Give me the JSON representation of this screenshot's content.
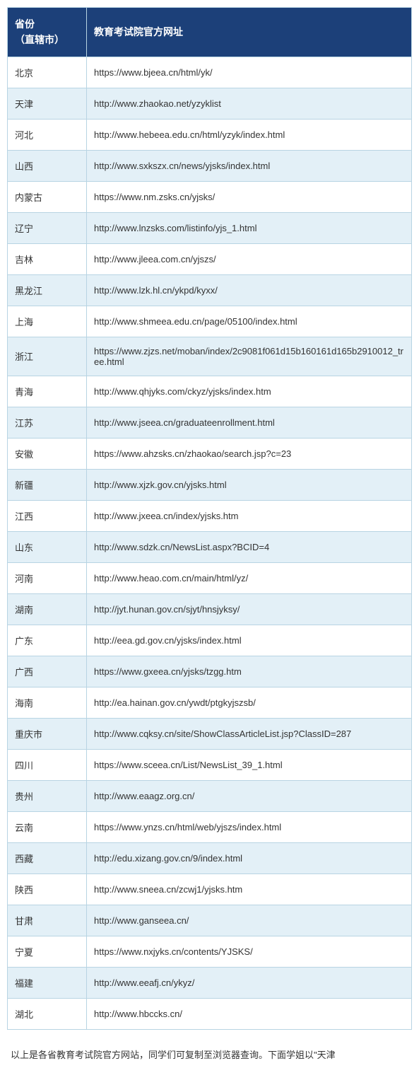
{
  "table": {
    "header": {
      "province": "省份\n（直辖市）",
      "url": "教育考试院官方网址"
    },
    "rows": [
      {
        "province": "北京",
        "url": "https://www.bjeea.cn/html/yk/"
      },
      {
        "province": "天津",
        "url": "http://www.zhaokao.net/yzyklist"
      },
      {
        "province": "河北",
        "url": "http://www.hebeea.edu.cn/html/yzyk/index.html"
      },
      {
        "province": "山西",
        "url": "http://www.sxkszx.cn/news/yjsks/index.html"
      },
      {
        "province": "内蒙古",
        "url": "https://www.nm.zsks.cn/yjsks/"
      },
      {
        "province": "辽宁",
        "url": "http://www.lnzsks.com/listinfo/yjs_1.html"
      },
      {
        "province": "吉林",
        "url": "http://www.jleea.com.cn/yjszs/"
      },
      {
        "province": "黑龙江",
        "url": "http://www.lzk.hl.cn/ykpd/kyxx/"
      },
      {
        "province": "上海",
        "url": "http://www.shmeea.edu.cn/page/05100/index.html"
      },
      {
        "province": "浙江",
        "url": "https://www.zjzs.net/moban/index/2c9081f061d15b160161d165b2910012_tree.html"
      },
      {
        "province": "青海",
        "url": "http://www.qhjyks.com/ckyz/yjsks/index.htm"
      },
      {
        "province": "江苏",
        "url": "http://www.jseea.cn/graduateenrollment.html"
      },
      {
        "province": "安徽",
        "url": "https://www.ahzsks.cn/zhaokao/search.jsp?c=23"
      },
      {
        "province": "新疆",
        "url": "http://www.xjzk.gov.cn/yjsks.html"
      },
      {
        "province": "江西",
        "url": "http://www.jxeea.cn/index/yjsks.htm"
      },
      {
        "province": "山东",
        "url": "http://www.sdzk.cn/NewsList.aspx?BCID=4"
      },
      {
        "province": "河南",
        "url": "http://www.heao.com.cn/main/html/yz/"
      },
      {
        "province": "湖南",
        "url": "http://jyt.hunan.gov.cn/sjyt/hnsjyksy/"
      },
      {
        "province": "广东",
        "url": "http://eea.gd.gov.cn/yjsks/index.html"
      },
      {
        "province": "广西",
        "url": "https://www.gxeea.cn/yjsks/tzgg.htm"
      },
      {
        "province": "海南",
        "url": "http://ea.hainan.gov.cn/ywdt/ptgkyjszsb/"
      },
      {
        "province": "重庆市",
        "url": "http://www.cqksy.cn/site/ShowClassArticleList.jsp?ClassID=287"
      },
      {
        "province": "四川",
        "url": "https://www.sceea.cn/List/NewsList_39_1.html"
      },
      {
        "province": "贵州",
        "url": "http://www.eaagz.org.cn/"
      },
      {
        "province": "云南",
        "url": "https://www.ynzs.cn/html/web/yjszs/index.html"
      },
      {
        "province": "西藏",
        "url": "http://edu.xizang.gov.cn/9/index.html"
      },
      {
        "province": "陕西",
        "url": "http://www.sneea.cn/zcwj1/yjsks.htm"
      },
      {
        "province": "甘肃",
        "url": "http://www.ganseea.cn/"
      },
      {
        "province": "宁夏",
        "url": "https://www.nxjyks.cn/contents/YJSKS/"
      },
      {
        "province": "福建",
        "url": "http://www.eeafj.cn/ykyz/"
      },
      {
        "province": "湖北",
        "url": "http://www.hbccks.cn/"
      }
    ],
    "styling": {
      "header_bg": "#1c4079",
      "header_text_color": "#ffffff",
      "border_color": "#b8d4e3",
      "row_odd_bg": "#ffffff",
      "row_even_bg": "#e3f0f7",
      "cell_text_color": "#333333",
      "header_fontsize": 14,
      "cell_fontsize": 13,
      "province_col_width": 112
    }
  },
  "footer": {
    "text": "以上是各省教育考试院官方网站，同学们可复制至浏览器查询。下面学姐以\"天津"
  }
}
